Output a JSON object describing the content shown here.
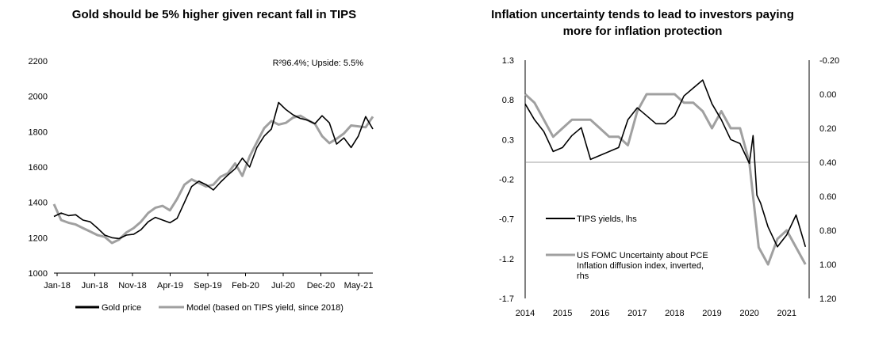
{
  "chart_data": [
    {
      "type": "line",
      "title": "Gold should be 5% higher given recant fall in TIPS",
      "annotation": "R²96.4%; Upside: 5.5%",
      "ylim": [
        1000,
        2200
      ],
      "yticks": [
        "1000",
        "1200",
        "1400",
        "1600",
        "1800",
        "2000",
        "2200"
      ],
      "xticks": [
        "Jan-18",
        "Jun-18",
        "Nov-18",
        "Apr-19",
        "Sep-19",
        "Feb-20",
        "Jul-20",
        "Dec-20",
        "May-21"
      ],
      "legend_position": "bottom",
      "grid": false,
      "series": [
        {
          "name": "Gold price",
          "color": "#000000",
          "x": [
            0,
            1,
            2,
            3,
            4,
            5,
            6,
            7,
            8,
            9,
            10,
            11,
            12,
            13,
            14,
            15,
            16,
            17,
            18,
            19,
            20,
            21,
            22,
            23,
            24,
            25,
            26,
            27,
            28,
            29,
            30,
            31,
            32,
            33,
            34,
            35,
            36,
            37,
            38,
            39,
            40,
            41,
            42,
            43,
            44
          ],
          "y": [
            1320,
            1340,
            1325,
            1330,
            1300,
            1290,
            1255,
            1215,
            1200,
            1195,
            1215,
            1220,
            1245,
            1290,
            1315,
            1300,
            1285,
            1310,
            1400,
            1490,
            1520,
            1500,
            1470,
            1515,
            1555,
            1590,
            1650,
            1600,
            1710,
            1775,
            1815,
            1965,
            1925,
            1895,
            1875,
            1865,
            1845,
            1890,
            1850,
            1730,
            1765,
            1710,
            1775,
            1885,
            1815
          ]
        },
        {
          "name": "Model (based on TIPS yield, since 2018)",
          "color": "#a0a0a0",
          "x": [
            0,
            1,
            2,
            3,
            4,
            5,
            6,
            7,
            8,
            9,
            10,
            11,
            12,
            13,
            14,
            15,
            16,
            17,
            18,
            19,
            20,
            21,
            22,
            23,
            24,
            25,
            26,
            27,
            28,
            29,
            30,
            31,
            32,
            33,
            34,
            35,
            36,
            37,
            38,
            39,
            40,
            41,
            42,
            43,
            44
          ],
          "y": [
            1390,
            1300,
            1285,
            1275,
            1255,
            1235,
            1215,
            1205,
            1170,
            1190,
            1230,
            1255,
            1290,
            1340,
            1370,
            1380,
            1355,
            1420,
            1500,
            1530,
            1510,
            1490,
            1500,
            1545,
            1565,
            1620,
            1550,
            1660,
            1740,
            1820,
            1860,
            1840,
            1850,
            1880,
            1890,
            1865,
            1845,
            1775,
            1735,
            1760,
            1790,
            1835,
            1830,
            1825,
            1885
          ]
        }
      ]
    },
    {
      "type": "line",
      "title": "Inflation uncertainty tends to lead to investors paying more for inflation protection",
      "ylim": [
        -1.7,
        1.3
      ],
      "y2lim": [
        -0.2,
        1.2
      ],
      "yticks": [
        "1.3",
        "0.8",
        "0.3",
        "-0.2",
        "-0.7",
        "-1.2",
        "-1.7"
      ],
      "y2ticks": [
        "-0.20",
        "0.00",
        "0.20",
        "0.40",
        "0.60",
        "0.80",
        "1.00",
        "1.20"
      ],
      "xticks": [
        "2014",
        "2015",
        "2016",
        "2017",
        "2018",
        "2019",
        "2020",
        "2021"
      ],
      "reference_line_y2": 0.4,
      "grid": false,
      "series": [
        {
          "name": "TIPS yields, lhs",
          "color": "#000000",
          "axis": "left",
          "x": [
            2014.0,
            2014.25,
            2014.5,
            2014.75,
            2015.0,
            2015.25,
            2015.5,
            2015.75,
            2016.0,
            2016.25,
            2016.5,
            2016.75,
            2017.0,
            2017.25,
            2017.5,
            2017.75,
            2018.0,
            2018.25,
            2018.5,
            2018.75,
            2019.0,
            2019.25,
            2019.5,
            2019.75,
            2020.0,
            2020.1,
            2020.2,
            2020.3,
            2020.5,
            2020.75,
            2021.0,
            2021.25,
            2021.5
          ],
          "y": [
            0.75,
            0.55,
            0.4,
            0.15,
            0.2,
            0.35,
            0.45,
            0.05,
            0.1,
            0.15,
            0.2,
            0.55,
            0.7,
            0.6,
            0.5,
            0.5,
            0.6,
            0.85,
            0.95,
            1.05,
            0.75,
            0.55,
            0.3,
            0.25,
            0.0,
            0.35,
            -0.4,
            -0.5,
            -0.8,
            -1.05,
            -0.9,
            -0.65,
            -1.05
          ]
        },
        {
          "name": "US FOMC Uncertainty about PCE Inflation diffusion index, inverted, rhs",
          "color": "#a0a0a0",
          "axis": "right",
          "x": [
            2014.0,
            2014.25,
            2014.5,
            2014.75,
            2015.0,
            2015.25,
            2015.5,
            2015.75,
            2016.0,
            2016.25,
            2016.5,
            2016.75,
            2017.0,
            2017.25,
            2017.5,
            2017.75,
            2018.0,
            2018.25,
            2018.5,
            2018.75,
            2019.0,
            2019.25,
            2019.5,
            2019.75,
            2020.0,
            2020.1,
            2020.25,
            2020.5,
            2020.75,
            2021.0,
            2021.25,
            2021.5
          ],
          "y": [
            0.0,
            0.05,
            0.15,
            0.25,
            0.2,
            0.15,
            0.15,
            0.15,
            0.2,
            0.25,
            0.25,
            0.3,
            0.1,
            0.0,
            0.0,
            0.0,
            0.0,
            0.05,
            0.05,
            0.1,
            0.2,
            0.1,
            0.2,
            0.2,
            0.4,
            0.6,
            0.9,
            1.0,
            0.85,
            0.8,
            0.9,
            1.0
          ]
        }
      ]
    }
  ]
}
